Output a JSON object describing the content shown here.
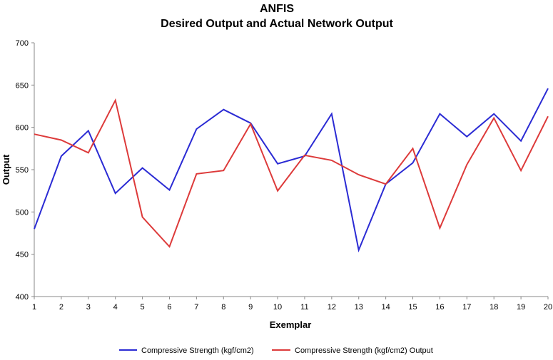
{
  "chart_data": {
    "type": "line",
    "title": "ANFIS",
    "subtitle": "Desired Output and Actual Network Output",
    "xlabel": "Exemplar",
    "ylabel": "Output",
    "categories": [
      "1",
      "2",
      "3",
      "4",
      "5",
      "6",
      "7",
      "8",
      "9",
      "10",
      "11",
      "12",
      "13",
      "14",
      "15",
      "16",
      "17",
      "18",
      "19",
      "20"
    ],
    "ylim": [
      400,
      700
    ],
    "yticks": [
      "400",
      "450",
      "500",
      "550",
      "600",
      "650",
      "700"
    ],
    "grid": false,
    "legend_position": "bottom",
    "series": [
      {
        "name": "Compressive Strength (kgf/cm2)",
        "color": "#2b2bd4",
        "values": [
          480,
          566,
          596,
          522,
          552,
          526,
          598,
          621,
          605,
          557,
          566,
          616,
          455,
          533,
          558,
          616,
          589,
          616,
          584,
          646
        ]
      },
      {
        "name": "Compressive Strength (kgf/cm2) Output",
        "color": "#dd3a3a",
        "values": [
          592,
          585,
          570,
          632,
          494,
          459,
          545,
          549,
          604,
          525,
          567,
          561,
          544,
          533,
          575,
          481,
          556,
          611,
          549,
          613
        ]
      }
    ]
  }
}
